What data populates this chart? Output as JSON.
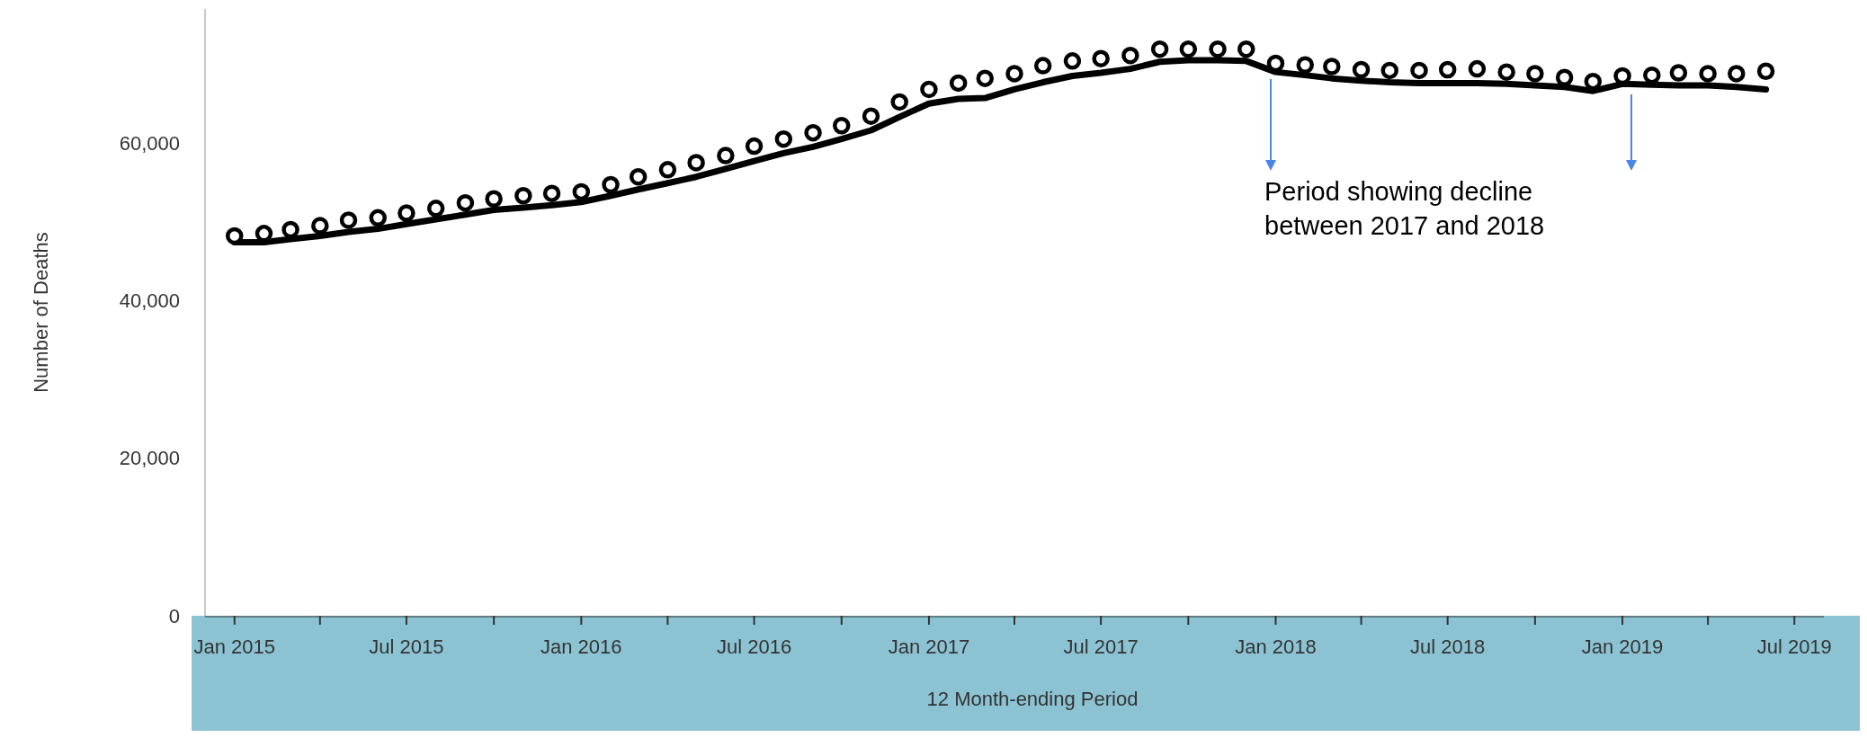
{
  "chart_data": {
    "type": "line",
    "ylabel": "Number of Deaths",
    "xlabel": "12 Month-ending Period",
    "annotations": [
      "Period showing decline between 2017 and 2018"
    ],
    "x": [
      "2015-01",
      "2015-02",
      "2015-03",
      "2015-04",
      "2015-05",
      "2015-06",
      "2015-07",
      "2015-08",
      "2015-09",
      "2015-10",
      "2015-11",
      "2015-12",
      "2016-01",
      "2016-02",
      "2016-03",
      "2016-04",
      "2016-05",
      "2016-06",
      "2016-07",
      "2016-08",
      "2016-09",
      "2016-10",
      "2016-11",
      "2016-12",
      "2017-01",
      "2017-02",
      "2017-03",
      "2017-04",
      "2017-05",
      "2017-06",
      "2017-07",
      "2017-08",
      "2017-09",
      "2017-10",
      "2017-11",
      "2017-12",
      "2018-01",
      "2018-02",
      "2018-03",
      "2018-04",
      "2018-05",
      "2018-06",
      "2018-07",
      "2018-08",
      "2018-09",
      "2018-10",
      "2018-11",
      "2018-12",
      "2019-01",
      "2019-02",
      "2019-03",
      "2019-04",
      "2019-05",
      "2019-06"
    ],
    "series": [
      {
        "color": "#000000",
        "values": [
          47400,
          47400,
          47800,
          48200,
          48700,
          49100,
          49700,
          50300,
          50900,
          51500,
          51800,
          52100,
          52500,
          53300,
          54100,
          54900,
          55700,
          56700,
          57700,
          58700,
          59500,
          60500,
          61600,
          63300,
          65000,
          65600,
          65700,
          66800,
          67700,
          68500,
          68900,
          69400,
          70300,
          70500,
          70500,
          70400,
          69000,
          68600,
          68200,
          67900,
          67700,
          67600,
          67600,
          67600,
          67500,
          67300,
          67100,
          66600,
          67500,
          67400,
          67300,
          67300,
          67100,
          66800
        ]
      },
      {
        "type": "scatter",
        "marker": "circle",
        "color": "#000000",
        "values": [
          48200,
          48500,
          49000,
          49500,
          50200,
          50500,
          51100,
          51700,
          52400,
          52900,
          53300,
          53600,
          53800,
          54700,
          55700,
          56600,
          57500,
          58400,
          59600,
          60500,
          61300,
          62200,
          63400,
          65200,
          66800,
          67600,
          68200,
          68800,
          69800,
          70400,
          70700,
          71100,
          71900,
          71900,
          71900,
          71900,
          70100,
          69900,
          69700,
          69300,
          69200,
          69200,
          69300,
          69400,
          69000,
          68800,
          68300,
          67800,
          68500,
          68600,
          68900,
          68800,
          68800,
          69100
        ]
      }
    ],
    "xlim": [
      "2014-12",
      "2019-08"
    ],
    "xticks": [
      {
        "value": "2015-01",
        "label": "Jan 2015"
      },
      {
        "value": "2015-04",
        "label": null
      },
      {
        "value": "2015-07",
        "label": "Jul 2015"
      },
      {
        "value": "2015-10",
        "label": null
      },
      {
        "value": "2016-01",
        "label": "Jan 2016"
      },
      {
        "value": "2016-04",
        "label": null
      },
      {
        "value": "2016-07",
        "label": "Jul 2016"
      },
      {
        "value": "2016-10",
        "label": null
      },
      {
        "value": "2017-01",
        "label": "Jan 2017"
      },
      {
        "value": "2017-04",
        "label": null
      },
      {
        "value": "2017-07",
        "label": "Jul 2017"
      },
      {
        "value": "2017-10",
        "label": null
      },
      {
        "value": "2018-01",
        "label": "Jan 2018"
      },
      {
        "value": "2018-04",
        "label": null
      },
      {
        "value": "2018-07",
        "label": "Jul 2018"
      },
      {
        "value": "2018-10",
        "label": null
      },
      {
        "value": "2019-01",
        "label": "Jan 2019"
      },
      {
        "value": "2019-04",
        "label": null
      },
      {
        "value": "2019-07",
        "label": "Jul 2019"
      }
    ],
    "ylim": [
      0,
      77000
    ],
    "yticks": [
      0,
      {
        "value": 20000,
        "label": "20,000"
      },
      {
        "value": 40000,
        "label": "40,000"
      },
      {
        "value": 60000,
        "label": "60,000"
      }
    ]
  }
}
